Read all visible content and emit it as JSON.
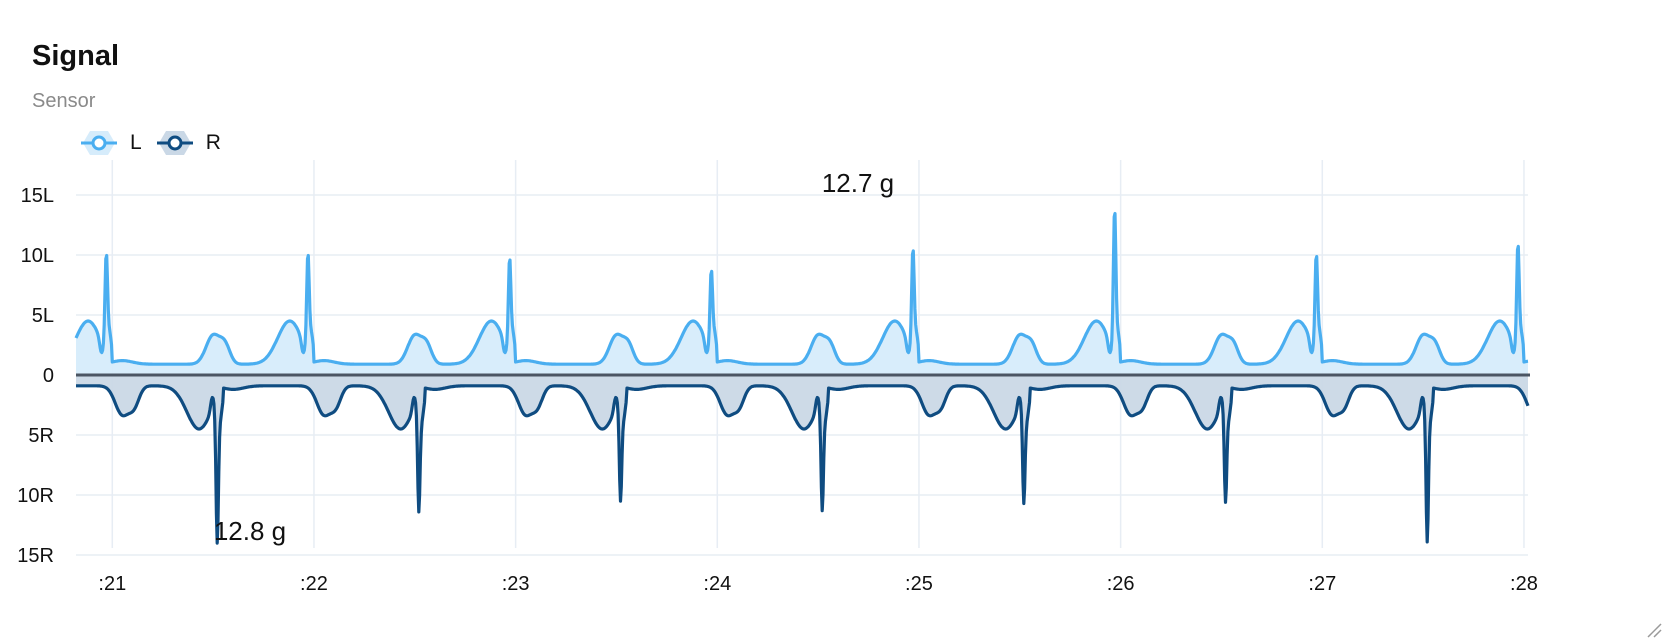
{
  "chart_data": {
    "type": "area",
    "title": "Signal",
    "subtitle": "Sensor",
    "xlabel": "",
    "ylabel": "",
    "x_ticks": [
      ":21",
      ":22",
      ":23",
      ":24",
      ":25",
      ":26",
      ":27",
      ":28"
    ],
    "y_ticks": [
      {
        "value": 15,
        "label": "15L"
      },
      {
        "value": 10,
        "label": "10L"
      },
      {
        "value": 5,
        "label": "5L"
      },
      {
        "value": 0,
        "label": "0"
      },
      {
        "value": -5,
        "label": "5R"
      },
      {
        "value": -10,
        "label": "10R"
      },
      {
        "value": -15,
        "label": "15R"
      }
    ],
    "xlim": [
      20.82,
      28.02
    ],
    "ylim": [
      -16,
      16.5
    ],
    "grid": true,
    "legend_position": "top-left",
    "series": [
      {
        "name": "L",
        "color": "#4aaef0",
        "fill": "#d6ecfb",
        "direction": 1,
        "peaks": [
          9,
          8.6,
          7.6,
          9.4,
          12.7,
          8.9,
          9.8,
          11
        ]
      },
      {
        "name": "R",
        "color": "#0f4c81",
        "fill": "#cad8e6",
        "direction": -1,
        "peaks": [
          12.8,
          10.2,
          9.3,
          10.1,
          9.5,
          9.4,
          12.7
        ]
      }
    ],
    "annotations": [
      {
        "text": "12.7 g",
        "series": "L"
      },
      {
        "text": "12.8 g",
        "series": "R"
      }
    ]
  }
}
